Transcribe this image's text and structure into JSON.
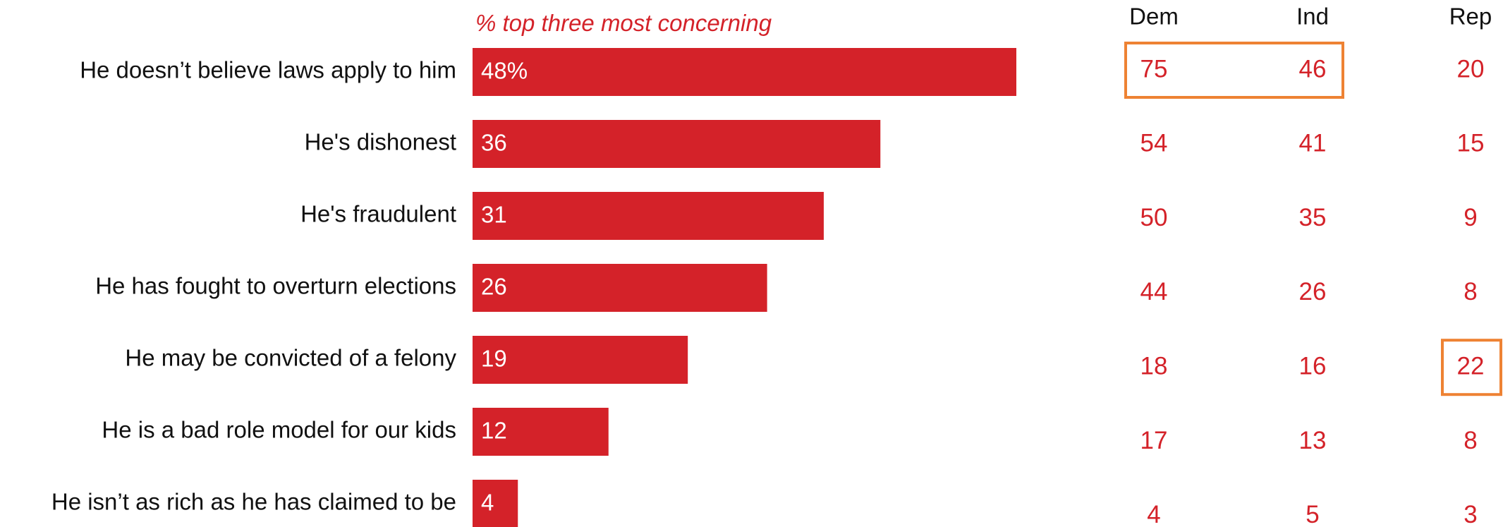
{
  "chart_data": {
    "type": "bar",
    "orientation": "horizontal",
    "subtitle": "% top three most concerning",
    "categories": [
      "He doesn’t believe laws apply to him",
      "He's dishonest",
      "He's fraudulent",
      "He has fought to overturn elections",
      "He may be convicted of a felony",
      "He is a bad role model for our kids",
      "He isn’t as rich as he has claimed to be"
    ],
    "values": [
      48,
      36,
      31,
      26,
      19,
      12,
      4
    ],
    "value_labels": [
      "48%",
      "36",
      "31",
      "26",
      "19",
      "12",
      "4"
    ],
    "xlim": [
      0,
      48
    ],
    "grid": false,
    "table": {
      "columns": [
        "Dem",
        "Ind",
        "Rep"
      ],
      "rows": [
        [
          "75",
          "46",
          "20"
        ],
        [
          "54",
          "41",
          "15"
        ],
        [
          "50",
          "35",
          "9"
        ],
        [
          "44",
          "26",
          "8"
        ],
        [
          "18",
          "16",
          "22"
        ],
        [
          "17",
          "13",
          "8"
        ],
        [
          "4",
          "5",
          "3"
        ]
      ],
      "highlights": [
        {
          "row": 0,
          "columns": [
            0,
            1
          ]
        },
        {
          "row": 4,
          "columns": [
            2
          ]
        }
      ]
    },
    "colors": {
      "bar": "#d42229",
      "subtitle": "#d42229",
      "table_values": "#d42229",
      "highlight_box": "#ee8233",
      "category_text": "#111111",
      "bar_label_text": "#ffffff"
    }
  }
}
